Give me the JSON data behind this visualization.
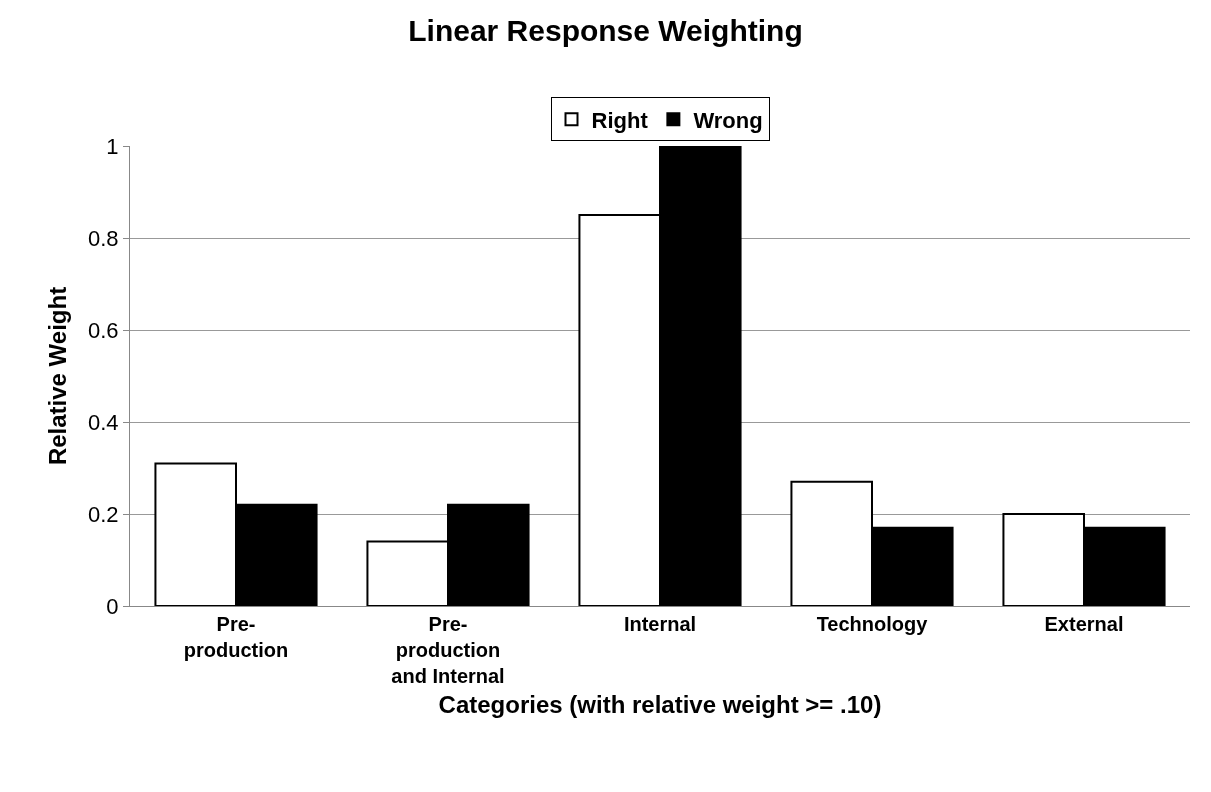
{
  "chart_data": {
    "type": "bar",
    "title": "Linear Response Weighting",
    "xlabel": "Categories (with relative weight >= .10)",
    "ylabel": "Relative Weight",
    "categories": [
      "Pre-\nproduction",
      "Pre-\nproduction\nand Internal",
      "Internal",
      "Technology",
      "External"
    ],
    "series": [
      {
        "name": "Right",
        "color": "#ffffff",
        "values": [
          0.31,
          0.14,
          0.85,
          0.27,
          0.2
        ]
      },
      {
        "name": "Wrong",
        "color": "#000000",
        "values": [
          0.22,
          0.22,
          1.0,
          0.17,
          0.17
        ]
      }
    ],
    "ylim": [
      0,
      1
    ],
    "yticks": [
      0,
      0.2,
      0.4,
      0.6,
      0.8,
      1
    ],
    "grid": "y",
    "legend": "top"
  }
}
